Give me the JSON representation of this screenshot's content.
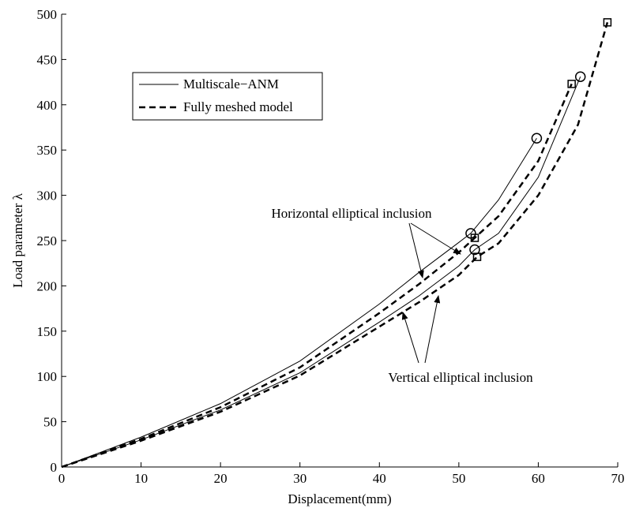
{
  "chart_data": {
    "type": "line",
    "xlabel": "Displacement(mm)",
    "ylabel": "Load parameter λ",
    "xlim": [
      0,
      70
    ],
    "ylim": [
      0,
      500
    ],
    "xticks": [
      0,
      10,
      20,
      30,
      40,
      50,
      60,
      70
    ],
    "yticks": [
      0,
      50,
      100,
      150,
      200,
      250,
      300,
      350,
      400,
      450,
      500
    ],
    "grid": false,
    "legend": [
      "Multiscale−ANM",
      "Fully meshed model"
    ],
    "legend_position": "upper left",
    "series": [
      {
        "style": "solid",
        "marker": "circle",
        "color": "#000",
        "x": [
          0,
          10,
          20,
          30,
          40,
          45,
          50,
          51.5,
          55,
          59.8
        ],
        "values": [
          0,
          33,
          70,
          117,
          180,
          215,
          248,
          258,
          295,
          363
        ],
        "markers": {
          "x": [
            51.5,
            59.8
          ],
          "values": [
            258,
            363
          ]
        }
      },
      {
        "style": "dashed",
        "marker": "square",
        "color": "#000",
        "x": [
          0,
          10,
          20,
          30,
          40,
          45,
          50,
          52,
          55,
          60,
          64.2
        ],
        "values": [
          0,
          31,
          66,
          110,
          170,
          202,
          237,
          253,
          277,
          338,
          423
        ],
        "markers": {
          "x": [
            52,
            64.2
          ],
          "values": [
            253,
            423
          ]
        }
      },
      {
        "style": "solid",
        "marker": "circle",
        "color": "#000",
        "x": [
          0,
          10,
          20,
          30,
          40,
          45,
          50,
          52,
          55,
          60,
          65.3
        ],
        "values": [
          0,
          30,
          63,
          104,
          160,
          189,
          222,
          240,
          258,
          320,
          431
        ],
        "markers": {
          "x": [
            52,
            65.3
          ],
          "values": [
            240,
            431
          ]
        }
      },
      {
        "style": "dashed",
        "marker": "square",
        "color": "#000",
        "x": [
          0,
          10,
          20,
          30,
          40,
          45,
          50,
          52.3,
          55,
          60,
          65,
          68.7
        ],
        "values": [
          0,
          29,
          61,
          101,
          155,
          182,
          212,
          232,
          247,
          300,
          378,
          491
        ],
        "markers": {
          "x": [
            52.3,
            68.7
          ],
          "values": [
            232,
            491
          ]
        }
      }
    ],
    "annotations": [
      "Horizontal elliptical inclusion",
      "Vertical elliptical inclusion"
    ]
  }
}
